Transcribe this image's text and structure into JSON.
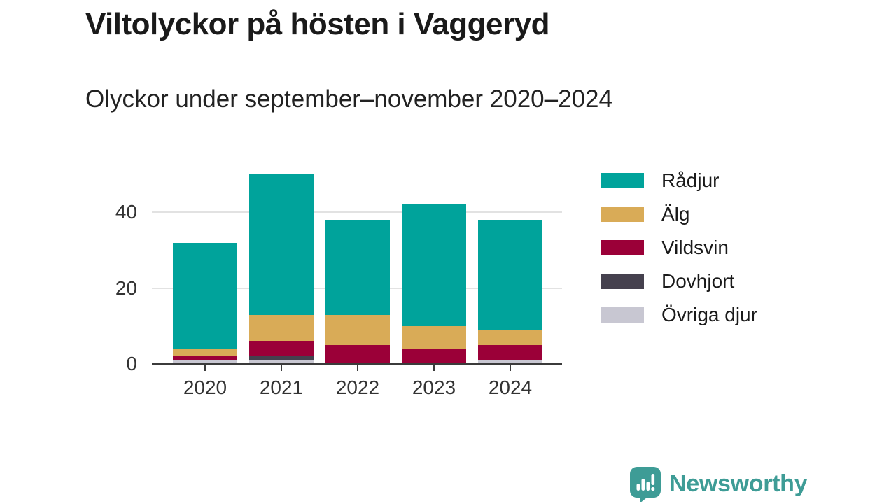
{
  "title": "Viltolyckor på hösten i Vaggeryd",
  "subtitle": "Olyckor under september–november 2020–2024",
  "branding": {
    "name": "Newsworthy",
    "color": "#3e9c96"
  },
  "colors": {
    "grid": "#e2e2e2",
    "axis": "#3b3b3b",
    "text": "#1a1a1a",
    "axis_text": "#333333"
  },
  "chart_data": {
    "type": "bar",
    "stacked": true,
    "title": "Viltolyckor på hösten i Vaggeryd",
    "subtitle": "Olyckor under september–november 2020–2024",
    "categories": [
      "2020",
      "2021",
      "2022",
      "2023",
      "2024"
    ],
    "series": [
      {
        "name": "Rådjur",
        "color": "#00a39b",
        "values": [
          28,
          37,
          25,
          32,
          29
        ]
      },
      {
        "name": "Älg",
        "color": "#d9ab57",
        "values": [
          2,
          7,
          8,
          6,
          4
        ]
      },
      {
        "name": "Vildsvin",
        "color": "#9b0038",
        "values": [
          1,
          4,
          5,
          4,
          4
        ]
      },
      {
        "name": "Dovhjort",
        "color": "#45414e",
        "values": [
          0,
          1,
          0,
          0,
          0
        ]
      },
      {
        "name": "Övriga djur",
        "color": "#c8c7d2",
        "values": [
          1,
          1,
          0,
          0,
          1
        ]
      }
    ],
    "stack_order_bottom_to_top": [
      "Övriga djur",
      "Dovhjort",
      "Vildsvin",
      "Älg",
      "Rådjur"
    ],
    "totals": [
      32,
      50,
      38,
      42,
      38
    ],
    "yticks": [
      0,
      20,
      40
    ],
    "ylim": [
      0,
      52
    ],
    "grid": "horizontal",
    "legend_position": "right"
  }
}
